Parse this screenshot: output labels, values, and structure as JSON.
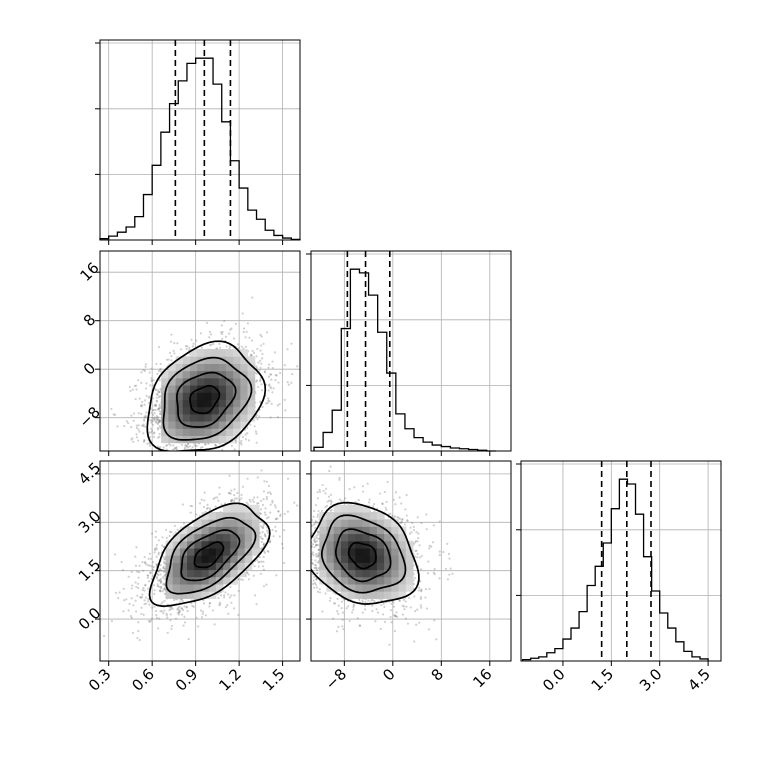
{
  "chart_data": {
    "type": "corner",
    "grid": true,
    "parameters": [
      {
        "ticks": [
          0.3,
          0.6,
          0.9,
          1.2,
          1.5
        ],
        "tick_labels": [
          "0.3",
          "0.6",
          "0.9",
          "1.2",
          "1.5"
        ],
        "range": [
          0.24,
          1.62
        ],
        "quantiles": [
          0.76,
          0.96,
          1.14
        ],
        "hist_bins": [
          0.24,
          0.3,
          0.36,
          0.42,
          0.48,
          0.54,
          0.6,
          0.66,
          0.72,
          0.78,
          0.84,
          0.9,
          0.96,
          1.02,
          1.08,
          1.14,
          1.2,
          1.26,
          1.32,
          1.38,
          1.44,
          1.5,
          1.56,
          1.62
        ],
        "hist_counts": [
          2,
          6,
          12,
          20,
          36,
          70,
          115,
          166,
          210,
          245,
          272,
          280,
          280,
          240,
          182,
          122,
          80,
          46,
          32,
          15,
          7,
          3,
          1
        ]
      },
      {
        "ticks": [
          -8,
          0,
          8,
          16
        ],
        "tick_labels": [
          "−8",
          "0",
          "8",
          "16"
        ],
        "range": [
          -13.5,
          19.5
        ],
        "quantiles": [
          -7.5,
          -4.5,
          -0.5
        ],
        "hist_bins": [
          -13.0,
          -11.5,
          -10.0,
          -8.5,
          -7.0,
          -5.5,
          -4.0,
          -2.5,
          -1.0,
          0.5,
          2.0,
          3.5,
          5.0,
          6.5,
          8.0,
          9.5,
          11.0,
          12.5,
          14.0,
          15.5,
          17.0
        ],
        "hist_counts": [
          5,
          25,
          55,
          165,
          245,
          240,
          210,
          160,
          105,
          50,
          30,
          18,
          12,
          8,
          6,
          4,
          3,
          2,
          1,
          0
        ]
      },
      {
        "ticks": [
          0.0,
          1.5,
          3.0,
          4.5
        ],
        "tick_labels": [
          "0.0",
          "1.5",
          "3.0",
          "4.5"
        ],
        "range": [
          -1.3,
          4.9
        ],
        "quantiles": [
          1.2,
          1.98,
          2.73
        ],
        "hist_bins": [
          -1.25,
          -1.0,
          -0.75,
          -0.5,
          -0.25,
          0.0,
          0.25,
          0.5,
          0.75,
          1.0,
          1.25,
          1.5,
          1.75,
          2.0,
          2.25,
          2.5,
          2.75,
          3.0,
          3.25,
          3.5,
          3.75,
          4.0,
          4.25,
          4.5
        ],
        "hist_counts": [
          2,
          4,
          6,
          12,
          18,
          32,
          48,
          72,
          110,
          138,
          172,
          222,
          265,
          258,
          214,
          152,
          102,
          70,
          48,
          28,
          14,
          6,
          3
        ]
      }
    ],
    "joint": [
      {
        "x_param": 0,
        "y_param": 1,
        "center": [
          0.96,
          -5.0
        ],
        "spread": [
          0.2,
          4.5
        ],
        "correlation": 0.25,
        "contour_levels": [
          0.5,
          1.0,
          1.5,
          2.0
        ],
        "y_tick_labels": [
          "−8",
          "0",
          "8",
          "16"
        ]
      },
      {
        "x_param": 0,
        "y_param": 2,
        "center": [
          0.99,
          1.98
        ],
        "spread": [
          0.2,
          0.78
        ],
        "correlation": 0.55,
        "contour_levels": [
          0.5,
          1.0,
          1.5,
          2.0
        ],
        "y_tick_labels": [
          "0.0",
          "1.5",
          "3.0",
          "4.5"
        ]
      },
      {
        "x_param": 1,
        "y_param": 2,
        "center": [
          -5.0,
          1.98
        ],
        "spread": [
          4.5,
          0.78
        ],
        "correlation": -0.2,
        "contour_levels": [
          0.5,
          1.0,
          1.5,
          2.0
        ],
        "y_tick_labels": []
      }
    ]
  }
}
